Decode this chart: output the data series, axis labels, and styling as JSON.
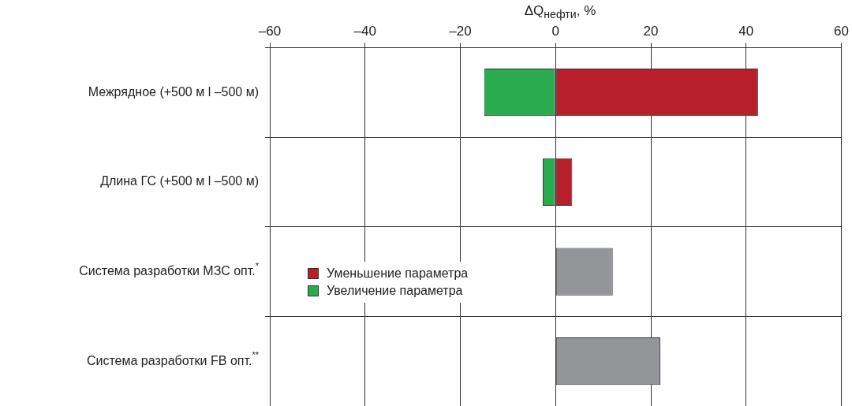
{
  "chart_data": {
    "type": "bar",
    "orientation": "horizontal",
    "stacked": true,
    "xlabel": "ΔQ$_{нефти}$, %",
    "categories": [
      "Межрядное (+500 м l –500 м)",
      "Длина ГС (+500 м l –500 м)",
      "Система разработки МЗС опт.$^{*}$",
      "Система разработки FB опт.$^{**}$"
    ],
    "series": [
      {
        "name": "Уменьшение параметра",
        "color": "#b7202b",
        "values": [
          42.5,
          3.5,
          null,
          null
        ]
      },
      {
        "name": "Увеличение параметра",
        "color": "#2aab4f",
        "values": [
          -15,
          -2.7,
          null,
          null
        ]
      },
      {
        "color": "#939598",
        "values": [
          null,
          null,
          12,
          22
        ]
      }
    ],
    "xlim": [
      -60,
      60
    ],
    "xticks": [
      {
        "value": -60,
        "label": "–60"
      },
      {
        "value": -40,
        "label": "–40"
      },
      {
        "value": -20,
        "label": "–20"
      },
      0,
      20,
      40,
      60
    ],
    "grid": true,
    "legend": "left"
  }
}
